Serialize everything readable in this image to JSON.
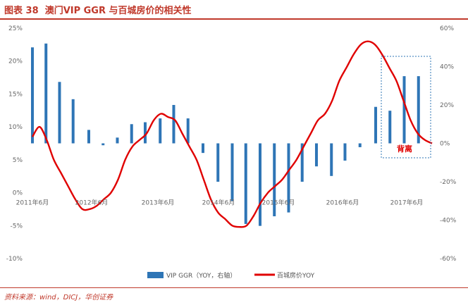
{
  "figure": {
    "label": "图表 38",
    "title": "澳门VIP GGR 与百城房价的相关性",
    "source": "资料来源：wind，DICJ，华创证券"
  },
  "colors": {
    "bar": "#2e75b6",
    "line": "#e00000",
    "title": "#c0392b",
    "annotation_box": "#2e75b6",
    "annotation_text": "#e00000",
    "axis_text": "#666666"
  },
  "chart_data": {
    "type": "bar+line",
    "title": "澳门VIP GGR 与百城房价的相关性",
    "left_axis": {
      "ticks": [
        "25%",
        "20%",
        "15%",
        "10%",
        "5%",
        "0%",
        "-5%",
        "-10%"
      ],
      "range": [
        -10,
        25
      ]
    },
    "right_axis": {
      "ticks": [
        "60%",
        "40%",
        "20%",
        "0%",
        "-20%",
        "-40%",
        "-60%"
      ],
      "range": [
        -60,
        60
      ]
    },
    "x_labels": [
      "2011年6月",
      "2012年6月",
      "2013年6月",
      "2014年6月",
      "2015年6月",
      "2016年6月",
      "2017年6月"
    ],
    "legend": {
      "bar": "VIP GGR（YOY，右轴）",
      "line": "百城房价YOY"
    },
    "annotation": "背离",
    "bars": {
      "name": "VIP GGR（YOY，右轴）",
      "axis": "right",
      "points": [
        [
          0,
          50
        ],
        [
          1.9,
          52
        ],
        [
          3.8,
          32
        ],
        [
          5.7,
          23
        ],
        [
          7.9,
          7
        ],
        [
          9.9,
          -1
        ],
        [
          11.9,
          3
        ],
        [
          13.9,
          10
        ],
        [
          15.8,
          11
        ],
        [
          17.9,
          13
        ],
        [
          19.8,
          20
        ],
        [
          21.8,
          13
        ],
        [
          23.9,
          -5
        ],
        [
          26,
          -20
        ],
        [
          28,
          -30
        ],
        [
          29.9,
          -42
        ],
        [
          31.9,
          -43
        ],
        [
          33.9,
          -38
        ],
        [
          35.9,
          -36
        ],
        [
          37.8,
          -20
        ],
        [
          39.8,
          -12
        ],
        [
          41.9,
          -17
        ],
        [
          43.8,
          -9
        ],
        [
          45.9,
          -2
        ],
        [
          48.1,
          19
        ],
        [
          50.1,
          17
        ],
        [
          52.1,
          35
        ],
        [
          54.1,
          35
        ]
      ]
    },
    "line": {
      "name": "百城房价YOY",
      "axis": "left",
      "points": [
        [
          0,
          8.5
        ],
        [
          1,
          10
        ],
        [
          2,
          8
        ],
        [
          3,
          5
        ],
        [
          4,
          3
        ],
        [
          5,
          1
        ],
        [
          6,
          -1
        ],
        [
          7,
          -2.5
        ],
        [
          8,
          -2.5
        ],
        [
          9,
          -2
        ],
        [
          10,
          -1
        ],
        [
          11,
          0
        ],
        [
          12,
          2
        ],
        [
          13,
          5
        ],
        [
          14,
          7
        ],
        [
          15,
          8
        ],
        [
          16,
          9
        ],
        [
          17,
          11
        ],
        [
          18,
          12
        ],
        [
          19,
          11.5
        ],
        [
          20,
          11
        ],
        [
          21,
          9
        ],
        [
          22,
          7
        ],
        [
          23,
          5
        ],
        [
          24,
          2
        ],
        [
          25,
          -1
        ],
        [
          26,
          -3
        ],
        [
          27,
          -4
        ],
        [
          28,
          -5
        ],
        [
          29,
          -5.2
        ],
        [
          30,
          -5
        ],
        [
          31,
          -3.5
        ],
        [
          32,
          -1.5
        ],
        [
          33,
          0
        ],
        [
          34,
          1
        ],
        [
          35,
          2
        ],
        [
          36,
          3.5
        ],
        [
          37,
          5
        ],
        [
          38,
          7
        ],
        [
          39,
          9
        ],
        [
          40,
          11
        ],
        [
          41,
          12
        ],
        [
          42,
          14
        ],
        [
          43,
          17
        ],
        [
          44,
          19
        ],
        [
          45,
          21
        ],
        [
          46,
          22.5
        ],
        [
          47,
          23
        ],
        [
          48,
          22.5
        ],
        [
          49,
          21
        ],
        [
          50,
          19
        ],
        [
          51,
          17
        ],
        [
          52,
          14
        ],
        [
          53,
          11
        ],
        [
          54,
          9
        ],
        [
          55,
          8
        ],
        [
          56,
          7.5
        ]
      ]
    }
  }
}
